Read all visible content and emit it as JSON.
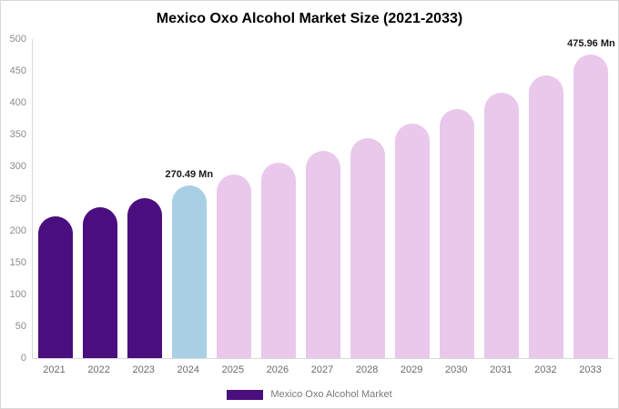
{
  "title": "Mexico Oxo Alcohol Market Size (2021-2033)",
  "legend": {
    "label": "Mexico Oxo Alcohol Market",
    "swatch_color": "#4a0e7f"
  },
  "chart_data": {
    "type": "bar",
    "title": "Mexico Oxo Alcohol Market Size (2021-2033)",
    "unit": "Mn",
    "categories": [
      "2021",
      "2022",
      "2023",
      "2024",
      "2025",
      "2026",
      "2027",
      "2028",
      "2029",
      "2030",
      "2031",
      "2032",
      "2033"
    ],
    "values": [
      222,
      236,
      251,
      270.49,
      288,
      306,
      325,
      345,
      367,
      391,
      416,
      443,
      475.96
    ],
    "bar_colors": [
      "#4a0e7f",
      "#4a0e7f",
      "#4a0e7f",
      "#a9cfe4",
      "#e9c8ec",
      "#e9c8ec",
      "#e9c8ec",
      "#e9c8ec",
      "#e9c8ec",
      "#e9c8ec",
      "#e9c8ec",
      "#e9c8ec",
      "#e9c8ec"
    ],
    "ylim": [
      0,
      500
    ],
    "ytick_step": 50,
    "grid": false,
    "legend_position": "bottom",
    "annotations": [
      {
        "category": "2024",
        "text": "270.49 Mn"
      },
      {
        "category": "2033",
        "text": "475.96 Mn"
      }
    ]
  }
}
